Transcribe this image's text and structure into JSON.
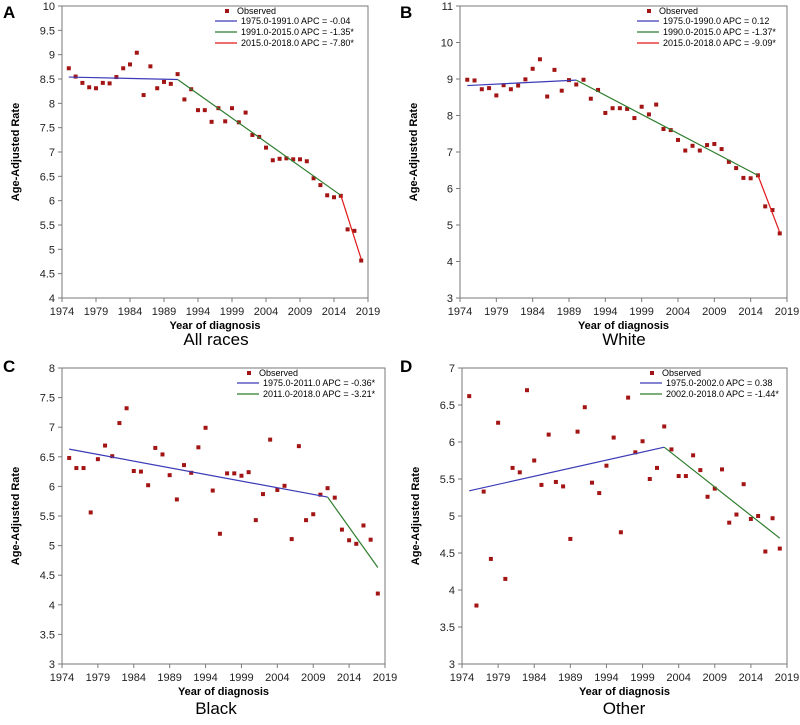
{
  "figure": {
    "x_title": "Year of diagnosis",
    "y_title": "Age-Adjusted Rate",
    "colors": {
      "point": "#a31515",
      "seg1": "#3b3bb8",
      "seg2": "#2e7d2e",
      "seg3": "#e01818",
      "frame": "#7a7a7a"
    }
  },
  "chart_data": [
    {
      "type": "scatter",
      "panel_letter": "A",
      "caption": "All races",
      "xlabel": "Year of diagnosis",
      "ylabel": "Age-Adjusted Rate",
      "xlim": [
        1974,
        2019
      ],
      "ylim": [
        4,
        10
      ],
      "xticks": [
        1974,
        1979,
        1984,
        1989,
        1994,
        1999,
        2004,
        2009,
        2014,
        2019
      ],
      "yticks": [
        4,
        4.5,
        5,
        5.5,
        6,
        6.5,
        7,
        7.5,
        8,
        8.5,
        9,
        9.5,
        10
      ],
      "legend_position": "top-right",
      "observed_label": "Observed",
      "observed": {
        "x": [
          1975,
          1976,
          1977,
          1978,
          1979,
          1980,
          1981,
          1982,
          1983,
          1984,
          1985,
          1986,
          1987,
          1988,
          1989,
          1990,
          1991,
          1992,
          1993,
          1994,
          1995,
          1996,
          1997,
          1998,
          1999,
          2000,
          2001,
          2002,
          2003,
          2004,
          2005,
          2006,
          2007,
          2008,
          2009,
          2010,
          2011,
          2012,
          2013,
          2014,
          2015,
          2016,
          2017,
          2018
        ],
        "y": [
          8.72,
          8.55,
          8.42,
          8.33,
          8.31,
          8.42,
          8.41,
          8.54,
          8.72,
          8.8,
          9.04,
          8.17,
          8.76,
          8.31,
          8.44,
          8.4,
          8.6,
          8.08,
          8.29,
          7.86,
          7.86,
          7.62,
          7.9,
          7.63,
          7.9,
          7.61,
          7.81,
          7.35,
          7.31,
          7.09,
          6.83,
          6.86,
          6.87,
          6.85,
          6.85,
          6.81,
          6.46,
          6.32,
          6.11,
          6.07,
          6.1,
          5.41,
          5.38,
          4.77
        ]
      },
      "segments": [
        {
          "label": "1975.0-1991.0 APC = -0.04",
          "x": [
            1975,
            1991
          ],
          "y": [
            8.54,
            8.49
          ],
          "color_key": "seg1"
        },
        {
          "label": "1991.0-2015.0 APC = -1.35*",
          "x": [
            1991,
            2015
          ],
          "y": [
            8.49,
            6.11
          ],
          "color_key": "seg2"
        },
        {
          "label": "2015.0-2018.0 APC = -7.80*",
          "x": [
            2015,
            2018
          ],
          "y": [
            6.11,
            4.8
          ],
          "color_key": "seg3"
        }
      ]
    },
    {
      "type": "scatter",
      "panel_letter": "B",
      "caption": "White",
      "xlabel": "Year of diagnosis",
      "ylabel": "Age-Adjusted Rate",
      "xlim": [
        1974,
        2019
      ],
      "ylim": [
        3,
        11
      ],
      "xticks": [
        1974,
        1979,
        1984,
        1989,
        1994,
        1999,
        2004,
        2009,
        2014,
        2019
      ],
      "yticks": [
        3,
        4,
        5,
        6,
        7,
        8,
        9,
        10,
        11
      ],
      "legend_position": "top-right",
      "observed_label": "Observed",
      "observed": {
        "x": [
          1975,
          1976,
          1977,
          1978,
          1979,
          1980,
          1981,
          1982,
          1983,
          1984,
          1985,
          1986,
          1987,
          1988,
          1989,
          1990,
          1991,
          1992,
          1993,
          1994,
          1995,
          1996,
          1997,
          1998,
          1999,
          2000,
          2001,
          2002,
          2003,
          2004,
          2005,
          2006,
          2007,
          2008,
          2009,
          2010,
          2011,
          2012,
          2013,
          2014,
          2015,
          2016,
          2017,
          2018
        ],
        "y": [
          8.98,
          8.96,
          8.72,
          8.75,
          8.55,
          8.83,
          8.72,
          8.82,
          8.99,
          9.28,
          9.54,
          8.52,
          9.25,
          8.68,
          8.97,
          8.85,
          8.98,
          8.46,
          8.7,
          8.07,
          8.2,
          8.2,
          8.18,
          7.93,
          8.24,
          8.03,
          8.3,
          7.63,
          7.6,
          7.33,
          7.04,
          7.17,
          7.04,
          7.19,
          7.22,
          7.08,
          6.73,
          6.56,
          6.29,
          6.28,
          6.36,
          5.51,
          5.41,
          4.77
        ]
      },
      "segments": [
        {
          "label": "1975.0-1990.0 APC = 0.12",
          "x": [
            1975,
            1990
          ],
          "y": [
            8.82,
            8.97
          ],
          "color_key": "seg1"
        },
        {
          "label": "1990.0-2015.0 APC = -1.37*",
          "x": [
            1990,
            2015
          ],
          "y": [
            8.97,
            6.36
          ],
          "color_key": "seg2"
        },
        {
          "label": "2015.0-2018.0 APC = -9.09*",
          "x": [
            2015,
            2018
          ],
          "y": [
            6.36,
            4.8
          ],
          "color_key": "seg3"
        }
      ]
    },
    {
      "type": "scatter",
      "panel_letter": "C",
      "caption": "Black",
      "xlabel": "Year of diagnosis",
      "ylabel": "Age-Adjusted Rate",
      "xlim": [
        1974,
        2019
      ],
      "ylim": [
        3,
        8
      ],
      "xticks": [
        1974,
        1979,
        1984,
        1989,
        1994,
        1999,
        2004,
        2009,
        2014,
        2019
      ],
      "yticks": [
        3,
        3.5,
        4,
        4.5,
        5,
        5.5,
        6,
        6.5,
        7,
        7.5,
        8
      ],
      "legend_position": "top-right",
      "observed_label": "Observed",
      "observed": {
        "x": [
          1975,
          1976,
          1977,
          1978,
          1979,
          1980,
          1981,
          1982,
          1983,
          1984,
          1985,
          1986,
          1987,
          1988,
          1989,
          1990,
          1991,
          1992,
          1993,
          1994,
          1995,
          1996,
          1997,
          1998,
          1999,
          2000,
          2001,
          2002,
          2003,
          2004,
          2005,
          2006,
          2007,
          2008,
          2009,
          2010,
          2011,
          2012,
          2013,
          2014,
          2015,
          2016,
          2017,
          2018
        ],
        "y": [
          6.48,
          6.31,
          6.31,
          5.56,
          6.46,
          6.69,
          6.51,
          7.07,
          7.32,
          6.26,
          6.25,
          6.02,
          6.65,
          6.54,
          6.19,
          5.78,
          6.36,
          6.23,
          6.66,
          6.99,
          5.93,
          5.2,
          6.22,
          6.22,
          6.18,
          6.24,
          5.43,
          5.87,
          6.79,
          5.94,
          6.01,
          5.11,
          6.68,
          5.43,
          5.53,
          5.86,
          5.97,
          5.81,
          5.27,
          5.09,
          5.03,
          5.34,
          5.1,
          4.19
        ]
      },
      "segments": [
        {
          "label": "1975.0-2011.0 APC = -0.36*",
          "x": [
            1975,
            2011
          ],
          "y": [
            6.63,
            5.82
          ],
          "color_key": "seg1"
        },
        {
          "label": "2011.0-2018.0 APC = -3.21*",
          "x": [
            2011,
            2018
          ],
          "y": [
            5.82,
            4.63
          ],
          "color_key": "seg2"
        }
      ]
    },
    {
      "type": "scatter",
      "panel_letter": "D",
      "caption": "Other",
      "xlabel": "Year of diagnosis",
      "ylabel": "Age-Adjusted Rate",
      "xlim": [
        1974,
        2019
      ],
      "ylim": [
        3,
        7
      ],
      "xticks": [
        1974,
        1979,
        1984,
        1989,
        1994,
        1999,
        2004,
        2009,
        2014,
        2019
      ],
      "yticks": [
        3,
        3.5,
        4,
        4.5,
        5,
        5.5,
        6,
        6.5,
        7
      ],
      "legend_position": "top-right",
      "observed_label": "Observed",
      "observed": {
        "x": [
          1975,
          1976,
          1977,
          1978,
          1979,
          1980,
          1981,
          1982,
          1983,
          1984,
          1985,
          1986,
          1987,
          1988,
          1989,
          1990,
          1991,
          1992,
          1993,
          1994,
          1995,
          1996,
          1997,
          1998,
          1999,
          2000,
          2001,
          2002,
          2003,
          2004,
          2005,
          2006,
          2007,
          2008,
          2009,
          2010,
          2011,
          2012,
          2013,
          2014,
          2015,
          2016,
          2017,
          2018
        ],
        "y": [
          6.62,
          3.79,
          5.33,
          4.42,
          6.26,
          4.15,
          5.65,
          5.59,
          6.7,
          5.75,
          5.42,
          6.1,
          5.46,
          5.4,
          4.69,
          6.14,
          6.47,
          5.45,
          5.31,
          5.68,
          6.06,
          4.78,
          6.6,
          5.86,
          6.01,
          5.5,
          5.65,
          6.21,
          5.9,
          5.54,
          5.54,
          5.82,
          5.62,
          5.26,
          5.37,
          5.63,
          4.91,
          5.02,
          5.43,
          4.96,
          5.0,
          4.52,
          4.97,
          4.56
        ]
      },
      "segments": [
        {
          "label": "1975.0-2002.0 APC = 0.38",
          "x": [
            1975,
            2002
          ],
          "y": [
            5.34,
            5.93
          ],
          "color_key": "seg1"
        },
        {
          "label": "2002.0-2018.0 APC = -1.44*",
          "x": [
            2002,
            2018
          ],
          "y": [
            5.93,
            4.7
          ],
          "color_key": "seg2"
        }
      ]
    }
  ]
}
